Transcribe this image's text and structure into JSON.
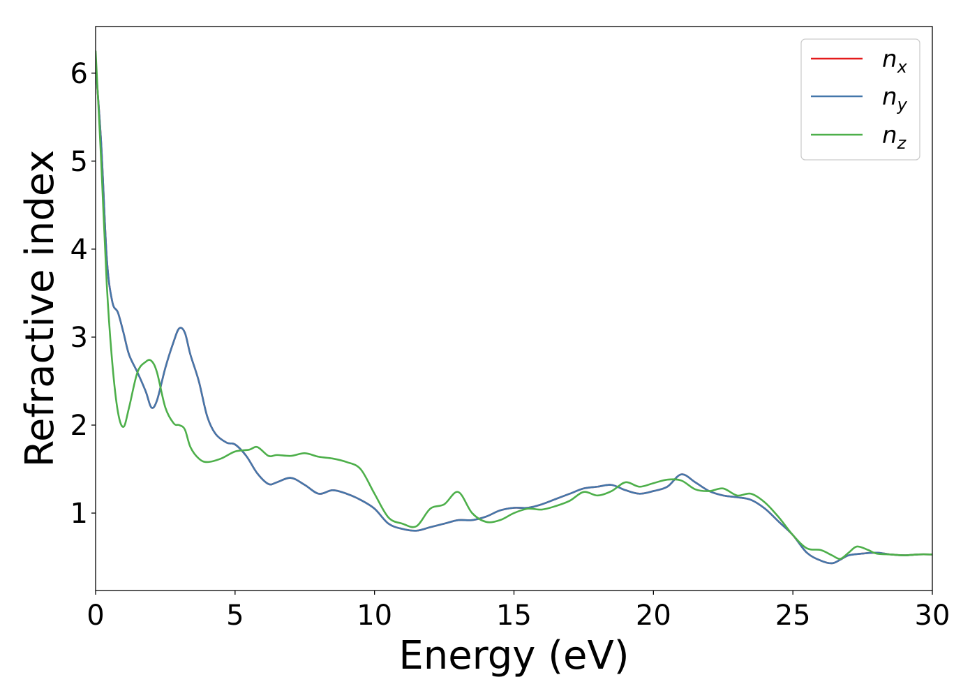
{
  "chart_data": {
    "type": "line",
    "title": "",
    "xlabel": "Energy (eV)",
    "ylabel": "Refractive index",
    "xlim": [
      0,
      30
    ],
    "ylim": [
      0.12,
      6.53
    ],
    "xticks": [
      0,
      5,
      10,
      15,
      20,
      25,
      30
    ],
    "yticks": [
      1,
      2,
      3,
      4,
      5,
      6
    ],
    "grid": false,
    "legend_position": "top-right",
    "series": [
      {
        "name": "n",
        "subscript": "x",
        "color": "#e41a1c",
        "x": [
          0,
          0.2,
          0.4,
          0.6,
          0.8,
          1.0,
          1.2,
          1.5,
          1.8,
          2.0,
          2.2,
          2.5,
          2.8,
          3.0,
          3.2,
          3.4,
          3.7,
          4.0,
          4.3,
          4.7,
          5.0,
          5.4,
          5.8,
          6.2,
          6.5,
          7.0,
          7.5,
          8.0,
          8.5,
          9.0,
          9.5,
          10.0,
          10.5,
          11.0,
          11.5,
          12.0,
          12.5,
          13.0,
          13.5,
          14.0,
          14.5,
          15.0,
          15.5,
          16.0,
          16.5,
          17.0,
          17.5,
          18.0,
          18.5,
          19.0,
          19.5,
          20.0,
          20.5,
          21.0,
          21.5,
          22.0,
          22.5,
          23.0,
          23.5,
          24.0,
          24.5,
          25.0,
          25.5,
          26.0,
          26.4,
          26.7,
          27.0,
          27.5,
          28.0,
          28.5,
          29.0,
          29.5,
          30.0
        ],
        "y": [
          6.1,
          5.2,
          3.9,
          3.4,
          3.28,
          3.05,
          2.8,
          2.6,
          2.38,
          2.2,
          2.28,
          2.65,
          2.95,
          3.1,
          3.05,
          2.8,
          2.5,
          2.1,
          1.9,
          1.8,
          1.78,
          1.65,
          1.45,
          1.33,
          1.35,
          1.4,
          1.32,
          1.22,
          1.26,
          1.22,
          1.15,
          1.05,
          0.88,
          0.82,
          0.8,
          0.84,
          0.88,
          0.92,
          0.92,
          0.96,
          1.03,
          1.06,
          1.06,
          1.1,
          1.16,
          1.22,
          1.28,
          1.3,
          1.32,
          1.26,
          1.22,
          1.25,
          1.3,
          1.44,
          1.35,
          1.25,
          1.2,
          1.18,
          1.15,
          1.05,
          0.9,
          0.75,
          0.55,
          0.46,
          0.43,
          0.47,
          0.52,
          0.54,
          0.55,
          0.53,
          0.52,
          0.53,
          0.53
        ]
      },
      {
        "name": "n",
        "subscript": "y",
        "color": "#4477aa",
        "x": [
          0,
          0.2,
          0.4,
          0.6,
          0.8,
          1.0,
          1.2,
          1.5,
          1.8,
          2.0,
          2.2,
          2.5,
          2.8,
          3.0,
          3.2,
          3.4,
          3.7,
          4.0,
          4.3,
          4.7,
          5.0,
          5.4,
          5.8,
          6.2,
          6.5,
          7.0,
          7.5,
          8.0,
          8.5,
          9.0,
          9.5,
          10.0,
          10.5,
          11.0,
          11.5,
          12.0,
          12.5,
          13.0,
          13.5,
          14.0,
          14.5,
          15.0,
          15.5,
          16.0,
          16.5,
          17.0,
          17.5,
          18.0,
          18.5,
          19.0,
          19.5,
          20.0,
          20.5,
          21.0,
          21.5,
          22.0,
          22.5,
          23.0,
          23.5,
          24.0,
          24.5,
          25.0,
          25.5,
          26.0,
          26.4,
          26.7,
          27.0,
          27.5,
          28.0,
          28.5,
          29.0,
          29.5,
          30.0
        ],
        "y": [
          6.1,
          5.2,
          3.9,
          3.4,
          3.28,
          3.05,
          2.8,
          2.6,
          2.38,
          2.2,
          2.28,
          2.65,
          2.95,
          3.1,
          3.05,
          2.8,
          2.5,
          2.1,
          1.9,
          1.8,
          1.78,
          1.65,
          1.45,
          1.33,
          1.35,
          1.4,
          1.32,
          1.22,
          1.26,
          1.22,
          1.15,
          1.05,
          0.88,
          0.82,
          0.8,
          0.84,
          0.88,
          0.92,
          0.92,
          0.96,
          1.03,
          1.06,
          1.06,
          1.1,
          1.16,
          1.22,
          1.28,
          1.3,
          1.32,
          1.26,
          1.22,
          1.25,
          1.3,
          1.44,
          1.35,
          1.25,
          1.2,
          1.18,
          1.15,
          1.05,
          0.9,
          0.75,
          0.55,
          0.46,
          0.43,
          0.47,
          0.52,
          0.54,
          0.55,
          0.53,
          0.52,
          0.53,
          0.53
        ]
      },
      {
        "name": "n",
        "subscript": "z",
        "color": "#4daf4a",
        "x": [
          0,
          0.2,
          0.4,
          0.6,
          0.8,
          1.0,
          1.2,
          1.5,
          1.8,
          2.0,
          2.2,
          2.5,
          2.8,
          3.0,
          3.2,
          3.4,
          3.7,
          4.0,
          4.5,
          5.0,
          5.5,
          5.8,
          6.2,
          6.5,
          7.0,
          7.5,
          8.0,
          8.5,
          9.0,
          9.5,
          10.0,
          10.5,
          11.0,
          11.5,
          12.0,
          12.5,
          13.0,
          13.5,
          14.0,
          14.5,
          15.0,
          15.5,
          16.0,
          16.5,
          17.0,
          17.5,
          18.0,
          18.5,
          19.0,
          19.5,
          20.0,
          20.5,
          21.0,
          21.5,
          22.0,
          22.5,
          23.0,
          23.5,
          24.0,
          24.5,
          25.0,
          25.5,
          26.0,
          26.4,
          26.7,
          27.0,
          27.3,
          27.7,
          28.0,
          28.5,
          29.0,
          29.5,
          30.0
        ],
        "y": [
          6.25,
          5.0,
          3.6,
          2.7,
          2.15,
          1.98,
          2.2,
          2.6,
          2.72,
          2.73,
          2.6,
          2.2,
          2.02,
          2.0,
          1.95,
          1.75,
          1.62,
          1.58,
          1.62,
          1.7,
          1.72,
          1.75,
          1.65,
          1.66,
          1.65,
          1.68,
          1.64,
          1.62,
          1.58,
          1.5,
          1.22,
          0.95,
          0.88,
          0.85,
          1.05,
          1.1,
          1.24,
          1.0,
          0.9,
          0.92,
          1.0,
          1.05,
          1.04,
          1.08,
          1.14,
          1.24,
          1.2,
          1.25,
          1.35,
          1.3,
          1.34,
          1.38,
          1.37,
          1.27,
          1.25,
          1.28,
          1.2,
          1.22,
          1.12,
          0.95,
          0.75,
          0.6,
          0.58,
          0.52,
          0.48,
          0.55,
          0.62,
          0.58,
          0.54,
          0.53,
          0.52,
          0.53,
          0.53
        ]
      }
    ]
  }
}
